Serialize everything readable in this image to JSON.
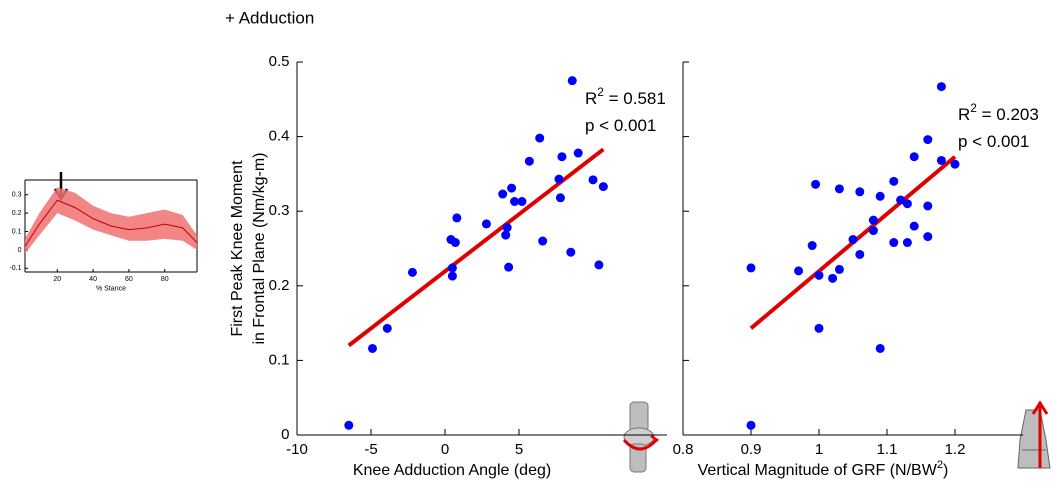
{
  "chart_data": [
    {
      "type": "scatter",
      "title": "+ Adduction",
      "xlabel": "Knee Adduction Angle (deg)",
      "ylabel": [
        "First Peak Knee Moment",
        "in Frontal Plane (Nm/kg-m)"
      ],
      "xlim": [
        -10,
        15
      ],
      "ylim": [
        0,
        0.5
      ],
      "xticks": [
        -10,
        -5,
        0,
        5
      ],
      "yticks": [
        0,
        0.1,
        0.2,
        0.3,
        0.4,
        0.5
      ],
      "show_ytick_labels": true,
      "series": [
        {
          "color": "#0000ff",
          "x": [
            -6.5,
            -4.9,
            -3.9,
            -2.2,
            0.5,
            0.5,
            0.4,
            0.7,
            0.8,
            2.8,
            3.9,
            4.1,
            4.2,
            4.3,
            4.5,
            4.7,
            5.2,
            5.7,
            6.4,
            6.6,
            7.7,
            7.8,
            7.9,
            8.5,
            8.6,
            9.0,
            10.0,
            10.7,
            10.4
          ],
          "values": [
            0.013,
            0.116,
            0.143,
            0.218,
            0.213,
            0.224,
            0.262,
            0.258,
            0.291,
            0.283,
            0.323,
            0.268,
            0.278,
            0.225,
            0.331,
            0.313,
            0.313,
            0.367,
            0.398,
            0.26,
            0.343,
            0.318,
            0.373,
            0.245,
            0.475,
            0.378,
            0.342,
            0.333,
            0.228
          ]
        }
      ],
      "trendline": {
        "x": [
          -6.5,
          10.7
        ],
        "y": [
          0.12,
          0.383
        ],
        "color": "#e00000"
      },
      "annotations": [
        {
          "text": "R",
          "sup": "2",
          "rest": " = 0.581"
        },
        {
          "text": "p < 0.001"
        }
      ]
    },
    {
      "type": "scatter",
      "xlabel": {
        "text": "Vertical Magnitude of GRF (N/BW",
        "sup": "2",
        "rest": ")"
      },
      "xlim": [
        0.8,
        1.3
      ],
      "ylim": [
        0,
        0.5
      ],
      "xticks": [
        0.8,
        0.9,
        1,
        1.1,
        1.2
      ],
      "yticks": [
        0,
        0.1,
        0.2,
        0.3,
        0.4,
        0.5
      ],
      "show_ytick_labels": false,
      "series": [
        {
          "color": "#0000ff",
          "x": [
            0.9,
            0.9,
            0.97,
            0.99,
            0.995,
            1.0,
            1.0,
            1.02,
            1.03,
            1.03,
            1.05,
            1.06,
            1.06,
            1.08,
            1.08,
            1.09,
            1.09,
            1.11,
            1.11,
            1.12,
            1.13,
            1.13,
            1.14,
            1.14,
            1.16,
            1.16,
            1.16,
            1.18,
            1.18,
            1.2
          ],
          "values": [
            0.013,
            0.224,
            0.22,
            0.254,
            0.336,
            0.143,
            0.214,
            0.21,
            0.222,
            0.33,
            0.262,
            0.242,
            0.326,
            0.274,
            0.288,
            0.116,
            0.32,
            0.34,
            0.258,
            0.315,
            0.258,
            0.31,
            0.28,
            0.373,
            0.266,
            0.307,
            0.396,
            0.368,
            0.467,
            0.363
          ]
        }
      ],
      "trendline": {
        "x": [
          0.9,
          1.2
        ],
        "y": [
          0.143,
          0.373
        ],
        "color": "#e00000"
      },
      "annotations": [
        {
          "text": "R",
          "sup": "2",
          "rest": " = 0.203"
        },
        {
          "text": "p < 0.001"
        }
      ]
    },
    {
      "type": "line",
      "xlabel": "% Stance",
      "xlim": [
        2,
        98
      ],
      "ylim": [
        -0.12,
        0.38
      ],
      "xticks": [
        20,
        40,
        60,
        80
      ],
      "yticks": [
        -0.1,
        0,
        0.1,
        0.2,
        0.3
      ],
      "show_ytick_labels": true,
      "x": [
        2,
        10,
        20,
        30,
        40,
        50,
        60,
        70,
        80,
        90,
        98
      ],
      "series": [
        {
          "color": "#c00000",
          "values": [
            0.02,
            0.14,
            0.27,
            0.23,
            0.17,
            0.13,
            0.11,
            0.12,
            0.14,
            0.12,
            0.04
          ]
        }
      ],
      "band": {
        "color": "#f07070",
        "upper": [
          0.06,
          0.2,
          0.34,
          0.31,
          0.24,
          0.2,
          0.18,
          0.2,
          0.22,
          0.19,
          0.08
        ],
        "lower": [
          -0.02,
          0.08,
          0.2,
          0.16,
          0.11,
          0.08,
          0.05,
          0.05,
          0.06,
          0.05,
          0.0
        ]
      }
    }
  ]
}
